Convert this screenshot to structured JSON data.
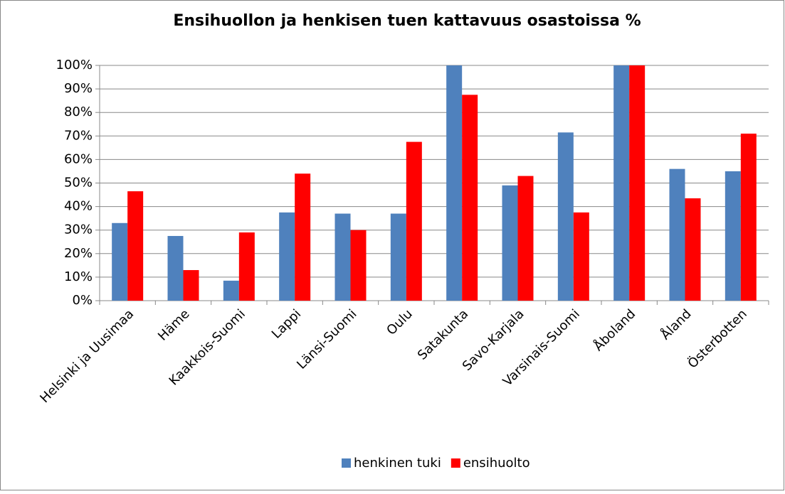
{
  "chart_data": {
    "type": "bar",
    "title": "Ensihuollon ja henkisen tuen kattavuus osastoissa %",
    "categories": [
      "Helsinki ja Uusimaa",
      "Häme",
      "Kaakkois-Suomi",
      "Lappi",
      "Länsi-Suomi",
      "Oulu",
      "Satakunta",
      "Savo-Karjala",
      "Varsinais-Suomi",
      "Åboland",
      "Åland",
      "Österbotten"
    ],
    "series": [
      {
        "name": "henkinen tuki",
        "color": "#4f81bd",
        "values": [
          33,
          27.5,
          8.5,
          37.5,
          37,
          37,
          100,
          49,
          71.5,
          100,
          56,
          55
        ]
      },
      {
        "name": "ensihuolto",
        "color": "#ff0000",
        "values": [
          46.5,
          13,
          29,
          54,
          30,
          67.5,
          87.5,
          53,
          37.5,
          100,
          43.5,
          71
        ]
      }
    ],
    "ylim": [
      0,
      100
    ],
    "yticks": [
      {
        "value": 0,
        "label": "0%"
      },
      {
        "value": 10,
        "label": "10%"
      },
      {
        "value": 20,
        "label": "20%"
      },
      {
        "value": 30,
        "label": "30%"
      },
      {
        "value": 40,
        "label": "40%"
      },
      {
        "value": 50,
        "label": "50%"
      },
      {
        "value": 60,
        "label": "60%"
      },
      {
        "value": 70,
        "label": "70%"
      },
      {
        "value": 80,
        "label": "80%"
      },
      {
        "value": 90,
        "label": "90%"
      },
      {
        "value": 100,
        "label": "100%"
      }
    ],
    "grid": true,
    "legend": "bottom"
  }
}
